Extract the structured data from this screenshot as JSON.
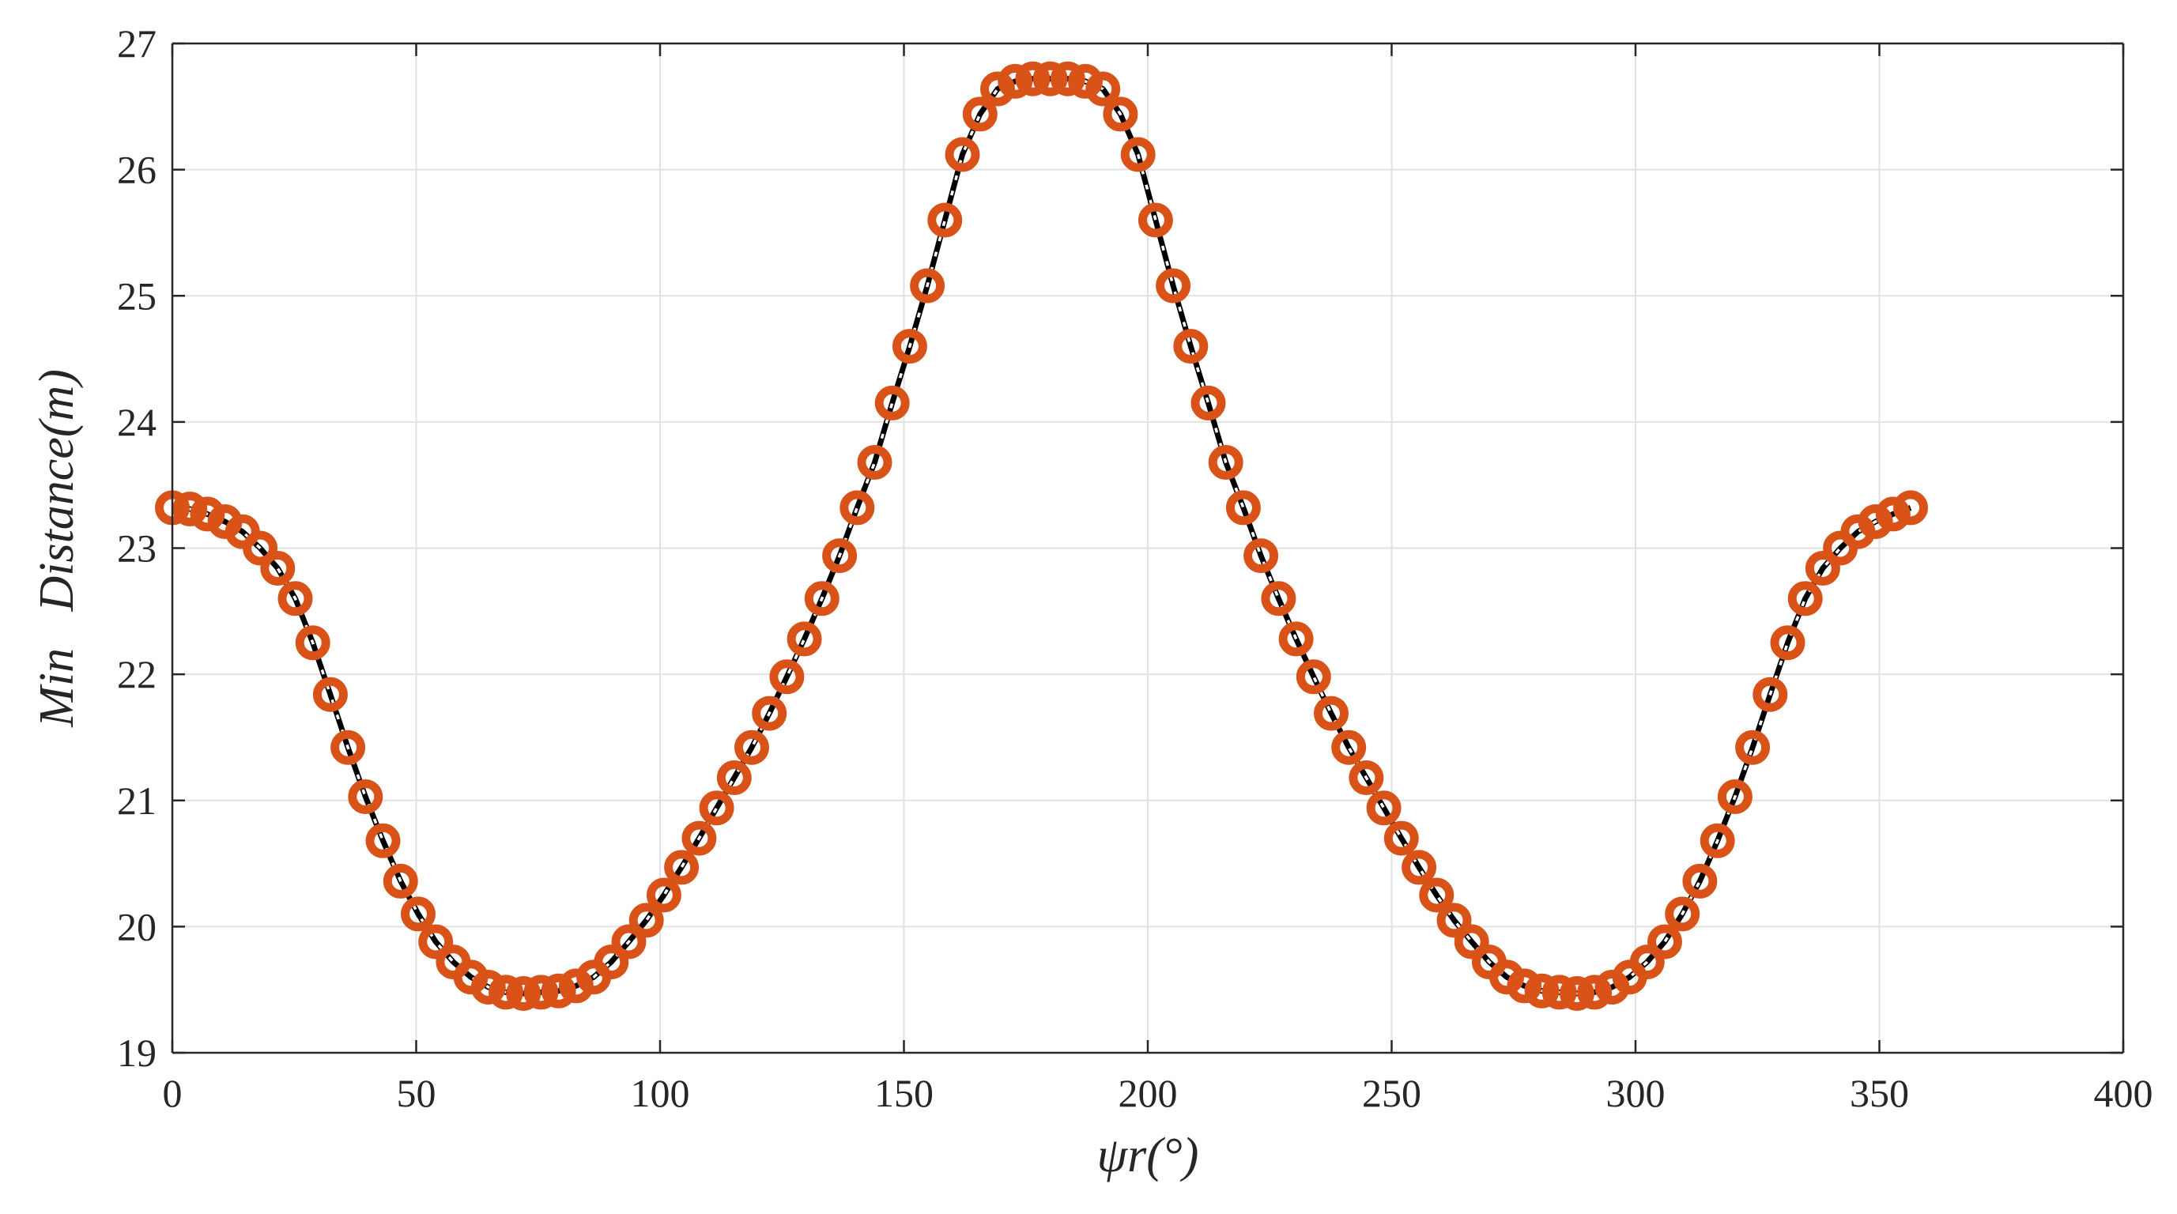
{
  "chart_data": {
    "type": "line",
    "title": "",
    "xlabel": "ψr(°)",
    "ylabel": "Min   Distance(m)",
    "xlim": [
      0,
      400
    ],
    "ylim": [
      19,
      27
    ],
    "xticks": [
      0,
      50,
      100,
      150,
      200,
      250,
      300,
      350,
      400
    ],
    "yticks": [
      19,
      20,
      21,
      22,
      23,
      24,
      25,
      26,
      27
    ],
    "xtick_labels": [
      "0",
      "50",
      "100",
      "150",
      "200",
      "250",
      "300",
      "350",
      "400"
    ],
    "ytick_labels": [
      "19",
      "20",
      "21",
      "22",
      "23",
      "24",
      "25",
      "26",
      "27"
    ],
    "grid": true,
    "legend": null,
    "series": [
      {
        "style": "solid black line with markers",
        "color": "#000000",
        "marker_color": "#D95319",
        "x": [
          0,
          3.6,
          7.2,
          10.8,
          14.4,
          18,
          21.6,
          25.2,
          28.8,
          32.4,
          36,
          39.6,
          43.2,
          46.8,
          50.4,
          54,
          57.6,
          61.2,
          64.8,
          68.4,
          72,
          75.6,
          79.2,
          82.8,
          86.4,
          90,
          93.6,
          97.2,
          100.8,
          104.4,
          108,
          111.6,
          115.2,
          118.8,
          122.4,
          126,
          129.6,
          133.2,
          136.8,
          140.4,
          144,
          147.6,
          151.2,
          154.8,
          158.4,
          162,
          165.6,
          169.2,
          172.8,
          176.4,
          180,
          183.6,
          187.2,
          190.8,
          194.4,
          198,
          201.6,
          205.2,
          208.8,
          212.4,
          216,
          219.6,
          223.2,
          226.8,
          230.4,
          234,
          237.6,
          241.2,
          244.8,
          248.4,
          252,
          255.6,
          259.2,
          262.8,
          266.4,
          270,
          273.6,
          277.2,
          280.8,
          284.4,
          288,
          291.6,
          295.2,
          298.8,
          302.4,
          306,
          309.6,
          313.2,
          316.8,
          320.4,
          324,
          327.6,
          331.2,
          334.8,
          338.4,
          342,
          345.6,
          349.2,
          352.8,
          356.4
        ],
        "y": [
          23.32,
          23.31,
          23.27,
          23.21,
          23.13,
          23.0,
          22.84,
          22.6,
          22.25,
          21.84,
          21.42,
          21.03,
          20.68,
          20.36,
          20.1,
          19.88,
          19.72,
          19.6,
          19.52,
          19.48,
          19.47,
          19.48,
          19.49,
          19.53,
          19.6,
          19.72,
          19.88,
          20.05,
          20.25,
          20.47,
          20.7,
          20.94,
          21.18,
          21.42,
          21.69,
          21.98,
          22.28,
          22.6,
          22.94,
          23.32,
          23.68,
          24.15,
          24.6,
          25.08,
          25.6,
          26.12,
          26.44,
          26.64,
          26.7,
          26.72,
          26.72,
          26.72,
          26.7,
          26.64,
          26.44,
          26.12,
          25.6,
          25.08,
          24.6,
          24.15,
          23.68,
          23.32,
          22.94,
          22.6,
          22.28,
          21.98,
          21.69,
          21.42,
          21.18,
          20.94,
          20.7,
          20.47,
          20.25,
          20.05,
          19.88,
          19.72,
          19.6,
          19.53,
          19.49,
          19.48,
          19.47,
          19.48,
          19.52,
          19.6,
          19.72,
          19.88,
          20.1,
          20.36,
          20.68,
          21.03,
          21.42,
          21.84,
          22.25,
          22.6,
          22.84,
          23.0,
          23.13,
          23.21,
          23.27,
          23.32
        ]
      }
    ]
  }
}
